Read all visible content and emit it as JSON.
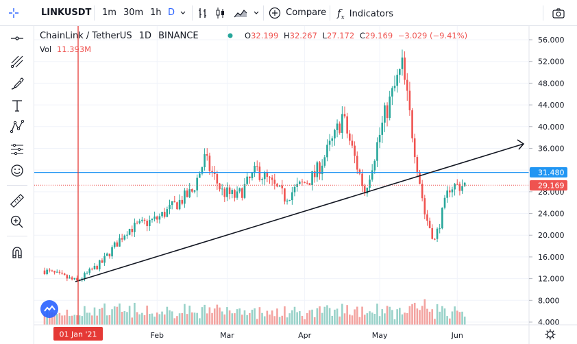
{
  "toolbar": {
    "symbol": "LINKUSDT",
    "intervals": [
      "1m",
      "30m",
      "1h",
      "D"
    ],
    "active_interval": "D",
    "compare_label": "Compare",
    "indicators_label": "Indicators"
  },
  "legend": {
    "title": "ChainLink / TetherUS",
    "interval": "1D",
    "exchange": "BINANCE",
    "o_label": "O",
    "o": "32.199",
    "h_label": "H",
    "h": "32.267",
    "l_label": "L",
    "l": "27.172",
    "c_label": "C",
    "c": "29.169",
    "change": "−3.029 (−9.41%)",
    "vol_label": "Vol",
    "vol": "11.393M"
  },
  "price_badges": {
    "hline": "31.480",
    "last": "29.169"
  },
  "crosshair_date": "01 Jan '21",
  "colors": {
    "up": "#26a69a",
    "down": "#ef5350",
    "vol_up": "#99d2c9",
    "vol_down": "#f3a3a0",
    "hline": "#2196f3",
    "crosshair": "#e53935",
    "accent": "#2962ff"
  },
  "chart_data": {
    "type": "candlestick",
    "y_axis_ticks": [
      "56.000",
      "52.000",
      "48.000",
      "44.000",
      "40.000",
      "36.000",
      "32.000",
      "28.000",
      "24.000",
      "20.000",
      "16.000",
      "12.000",
      "8.000",
      "4.000"
    ],
    "x_axis_ticks": [
      "Feb",
      "Mar",
      "Apr",
      "May",
      "Jun"
    ],
    "ylim": [
      4,
      56
    ],
    "scale": "linear",
    "grid": true,
    "horizontal_line_price": 31.48,
    "last_price": 29.169,
    "trend_line": {
      "from": [
        "2020-12-31",
        11.0
      ],
      "to": [
        "2021-06-05",
        36.8
      ]
    },
    "candles_description": "daily OHLC, Dec 2020 - early Jun 2021",
    "close_keypoints": [
      [
        "2020-12-18",
        13.5
      ],
      [
        "2020-12-31",
        11.5
      ],
      [
        "2021-01-10",
        15.0
      ],
      [
        "2021-01-20",
        21.0
      ],
      [
        "2021-02-01",
        23.0
      ],
      [
        "2021-02-15",
        28.0
      ],
      [
        "2021-02-20",
        34.0
      ],
      [
        "2021-02-27",
        28.0
      ],
      [
        "2021-03-05",
        27.0
      ],
      [
        "2021-03-13",
        32.0
      ],
      [
        "2021-03-24",
        27.0
      ],
      [
        "2021-04-05",
        31.0
      ],
      [
        "2021-04-13",
        38.0
      ],
      [
        "2021-04-16",
        42.0
      ],
      [
        "2021-04-25",
        28.0
      ],
      [
        "2021-05-03",
        42.0
      ],
      [
        "2021-05-10",
        51.0
      ],
      [
        "2021-05-19",
        24.0
      ],
      [
        "2021-05-23",
        19.0
      ],
      [
        "2021-05-29",
        29.0
      ],
      [
        "2021-06-04",
        29.2
      ]
    ]
  }
}
